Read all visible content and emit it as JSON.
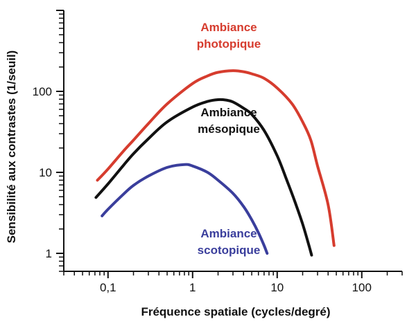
{
  "chart_data": {
    "type": "line",
    "xscale": "log",
    "yscale": "log",
    "xlim": [
      0.03,
      300
    ],
    "ylim": [
      0.6,
      1000
    ],
    "xlabel": "Fréquence spatiale (cycles/degré)",
    "ylabel": "Sensibilité aux contrastes (1/seuil)",
    "xticks": [
      {
        "value": 0.1,
        "label": "0,1"
      },
      {
        "value": 1,
        "label": "1"
      },
      {
        "value": 10,
        "label": "10"
      },
      {
        "value": 100,
        "label": "100"
      }
    ],
    "yticks": [
      {
        "value": 1,
        "label": "1"
      },
      {
        "value": 10,
        "label": "10"
      },
      {
        "value": 100,
        "label": "100"
      }
    ],
    "series": [
      {
        "name": "Ambiance photopique",
        "color": "#d63c2e",
        "x": [
          0.075,
          0.1,
          0.15,
          0.2,
          0.3,
          0.5,
          1,
          1.5,
          2,
          3,
          4,
          5,
          7,
          10,
          15,
          20,
          25,
          30,
          40,
          47
        ],
        "y": [
          8,
          11,
          18,
          25,
          40,
          70,
          125,
          155,
          172,
          180,
          175,
          165,
          145,
          110,
          70,
          42,
          25,
          12,
          4,
          1.25
        ]
      },
      {
        "name": "Ambiance mésopique",
        "color": "#111111",
        "x": [
          0.072,
          0.1,
          0.15,
          0.2,
          0.3,
          0.5,
          1,
          1.5,
          2,
          2.5,
          3,
          4,
          5,
          7,
          10,
          13,
          16,
          20,
          24,
          25.5
        ],
        "y": [
          4.9,
          7.2,
          12,
          17,
          26,
          42,
          64,
          75,
          79,
          78,
          74,
          62,
          52,
          33,
          16,
          8,
          4.5,
          2.3,
          1.2,
          0.95
        ]
      },
      {
        "name": "Ambiance scotopique",
        "color": "#3a3e9c",
        "x": [
          0.085,
          0.1,
          0.15,
          0.2,
          0.3,
          0.5,
          0.8,
          1,
          1.5,
          2,
          3,
          4,
          5,
          6,
          7,
          7.6
        ],
        "y": [
          2.9,
          3.5,
          5.3,
          6.9,
          9.0,
          11.5,
          12.5,
          12.0,
          10,
          8,
          5.5,
          3.8,
          2.6,
          1.8,
          1.25,
          1.0
        ]
      }
    ],
    "annotations": [
      {
        "series": 0,
        "lines": [
          "Ambiance",
          "photopique"
        ]
      },
      {
        "series": 1,
        "lines": [
          "Ambiance",
          "mésopique"
        ]
      },
      {
        "series": 2,
        "lines": [
          "Ambiance",
          "scotopique"
        ]
      }
    ]
  }
}
